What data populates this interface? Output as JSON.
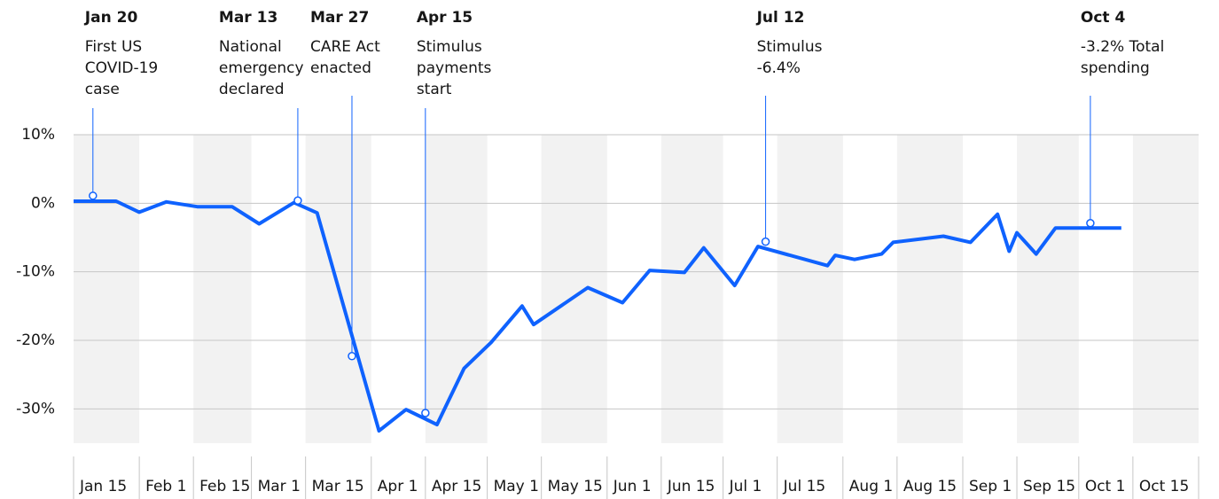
{
  "chart_data": {
    "type": "line",
    "xlim": [
      "Jan 15",
      "Nov 1"
    ],
    "xticks": [
      "Jan 15",
      "Feb 1",
      "Feb 15",
      "Mar 1",
      "Mar 15",
      "Apr 1",
      "Apr 15",
      "May 1",
      "May 15",
      "Jun 1",
      "Jun 15",
      "Jul 1",
      "Jul 15",
      "Aug 1",
      "Aug 15",
      "Sep 1",
      "Sep 15",
      "Oct 1",
      "Oct 15"
    ],
    "ylim": [
      -35,
      10
    ],
    "yticks": [
      {
        "value": 10,
        "label": "10%"
      },
      {
        "value": 0,
        "label": "0%"
      },
      {
        "value": -10,
        "label": "-10%"
      },
      {
        "value": -20,
        "label": "-20%"
      },
      {
        "value": -30,
        "label": "-30%"
      }
    ],
    "grid": true,
    "bands": true,
    "x": [
      "Jan 15",
      "Jan 26",
      "Feb 1",
      "Feb 8",
      "Feb 16",
      "Feb 25",
      "Mar 3",
      "Mar 12",
      "Mar 18",
      "Apr 3",
      "Apr 10",
      "Apr 18",
      "Apr 25",
      "May 2",
      "May 10",
      "May 13",
      "May 27",
      "Jun 5",
      "Jun 12",
      "Jun 21",
      "Jun 26",
      "Jul 4",
      "Jul 10",
      "Jul 28",
      "Jul 30",
      "Aug 4",
      "Aug 11",
      "Aug 14",
      "Aug 27",
      "Sep 3",
      "Sep 10",
      "Sep 13",
      "Sep 15",
      "Sep 20",
      "Sep 25",
      "Oct 12"
    ],
    "series": [
      {
        "color": "#0f62fe",
        "values": [
          0.3,
          0.3,
          -1.3,
          0.2,
          -0.5,
          -0.5,
          -3.0,
          0.1,
          -1.4,
          -33.2,
          -30.1,
          -32.3,
          -24.1,
          -20.3,
          -15.0,
          -17.7,
          -12.3,
          -14.5,
          -9.8,
          -10.1,
          -6.5,
          -12.0,
          -6.3,
          -9.1,
          -7.6,
          -8.2,
          -7.4,
          -5.7,
          -4.8,
          -5.7,
          -1.6,
          -7.0,
          -4.3,
          -7.4,
          -3.6,
          -3.6
        ]
      }
    ],
    "annotations": [
      {
        "date": "Jan 20",
        "lines": [
          "First US",
          "COVID-19",
          "case"
        ],
        "value": 1.1
      },
      {
        "date": "Mar 13",
        "lines": [
          "National",
          "emergency",
          "declared"
        ],
        "value": 0.4
      },
      {
        "date": "Mar 27",
        "lines": [
          "CARE Act",
          "enacted"
        ],
        "value": -22.3
      },
      {
        "date": "Apr 15",
        "lines": [
          "Stimulus",
          "payments",
          "start"
        ],
        "value": -30.6
      },
      {
        "date": "Jul 12",
        "lines": [
          "Stimulus",
          "-6.4%"
        ],
        "value": -5.6
      },
      {
        "date": "Oct 4",
        "lines": [
          "-3.2% Total",
          "spending"
        ],
        "value": -2.9
      }
    ]
  }
}
